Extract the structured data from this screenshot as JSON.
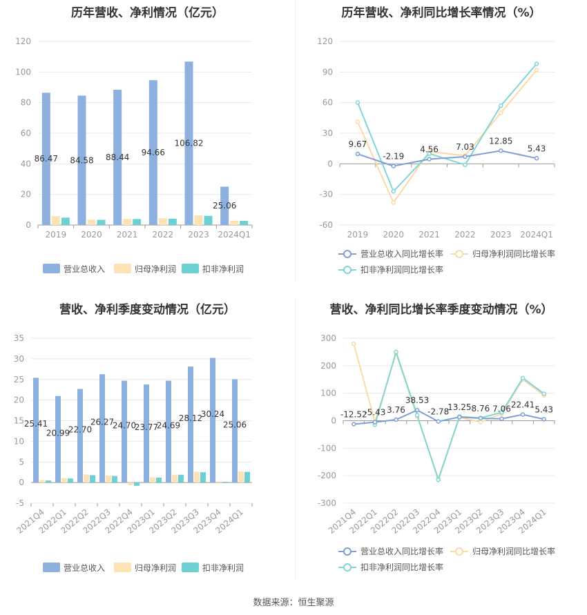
{
  "source_label": "数据来源：恒生聚源",
  "legend_bar": [
    "营业总收入",
    "归母净利润",
    "扣非净利润"
  ],
  "legend_line": [
    "营业总收入同比增长率",
    "归母净利润同比增长率",
    "扣非净利润同比增长率"
  ],
  "colors": {
    "revenue_bar": "#8eb0de",
    "netprofit_bar": "#fde2b5",
    "deducted_bar": "#6dd0d3",
    "revenue_line": "#7e9fd2",
    "netprofit_line": "#fcd9a6",
    "deducted_line": "#7fd6d6"
  },
  "chart_data": [
    {
      "id": "annual_bar",
      "type": "bar",
      "title": "历年营收、净利情况（亿元）",
      "categories": [
        "2019",
        "2020",
        "2021",
        "2022",
        "2023",
        "2024Q1"
      ],
      "series": [
        {
          "name": "营业总收入",
          "values": [
            86.47,
            84.58,
            88.44,
            94.66,
            106.82,
            25.06
          ],
          "labels": [
            "86.47",
            "84.58",
            "88.44",
            "94.66",
            "106.82",
            "25.06"
          ]
        },
        {
          "name": "归母净利润",
          "values": [
            5.8,
            3.5,
            4.0,
            4.4,
            6.3,
            2.8
          ]
        },
        {
          "name": "扣非净利润",
          "values": [
            4.8,
            3.4,
            3.9,
            4.1,
            6.0,
            2.7
          ]
        }
      ],
      "ylim": [
        0,
        120
      ],
      "yticks": [
        0,
        20,
        40,
        60,
        80,
        100,
        120
      ]
    },
    {
      "id": "annual_growth",
      "type": "line",
      "title": "历年营收、净利同比增长率情况（%）",
      "categories": [
        "2019",
        "2020",
        "2021",
        "2022",
        "2023",
        "2024Q1"
      ],
      "series": [
        {
          "name": "营业总收入同比增长率",
          "values": [
            9.67,
            -2.19,
            4.56,
            7.03,
            12.85,
            5.43
          ],
          "labels": [
            "9.67",
            "-2.19",
            "4.56",
            "7.03",
            "12.85",
            "5.43"
          ]
        },
        {
          "name": "归母净利润同比增长率",
          "values": [
            41,
            -38,
            12,
            8,
            50,
            92
          ]
        },
        {
          "name": "扣非净利润同比增长率",
          "values": [
            60,
            -27,
            10,
            -1,
            57,
            98
          ]
        }
      ],
      "ylim": [
        -60,
        120
      ],
      "yticks": [
        -60,
        -30,
        0,
        30,
        60,
        90,
        120
      ]
    },
    {
      "id": "quarterly_bar",
      "type": "bar",
      "title": "营收、净利季度变动情况（亿元）",
      "categories": [
        "2021Q4",
        "2022Q1",
        "2022Q2",
        "2022Q3",
        "2022Q4",
        "2023Q1",
        "2023Q2",
        "2023Q3",
        "2023Q4",
        "2024Q1"
      ],
      "series": [
        {
          "name": "营业总收入",
          "values": [
            25.41,
            20.99,
            22.7,
            26.27,
            24.7,
            23.77,
            24.69,
            28.12,
            30.24,
            25.06
          ],
          "labels": [
            "25.41",
            "20.99",
            "22.70",
            "26.27",
            "24.70",
            "23.77",
            "24.69",
            "28.12",
            "30.24",
            "25.06"
          ]
        },
        {
          "name": "归母净利润",
          "values": [
            0.6,
            1.1,
            2.0,
            1.7,
            -0.6,
            1.3,
            1.9,
            2.6,
            0.3,
            2.7
          ]
        },
        {
          "name": "扣非净利润",
          "values": [
            0.5,
            1.0,
            1.8,
            1.6,
            -0.8,
            1.2,
            1.9,
            2.5,
            0.2,
            2.6
          ]
        }
      ],
      "ylim": [
        -5,
        35
      ],
      "yticks": [
        -5,
        0,
        5,
        10,
        15,
        20,
        25,
        30,
        35
      ]
    },
    {
      "id": "quarterly_growth",
      "type": "line",
      "title": "营收、净利同比增长率季度变动情况（%）",
      "categories": [
        "2021Q4",
        "2022Q1",
        "2022Q2",
        "2022Q3",
        "2022Q4",
        "2023Q1",
        "2023Q2",
        "2023Q3",
        "2023Q4",
        "2024Q1"
      ],
      "series": [
        {
          "name": "营业总收入同比增长率",
          "values": [
            -12.52,
            -5.43,
            3.76,
            38.53,
            -2.78,
            13.25,
            8.76,
            7.06,
            22.41,
            5.43
          ],
          "labels": [
            "-12.52",
            "-5.43",
            "3.76",
            "38.53",
            "-2.78",
            "13.25",
            "8.76",
            "7.06",
            "22.41",
            "5.43"
          ]
        },
        {
          "name": "归母净利润同比增长率",
          "values": [
            280,
            -5,
            245,
            15,
            -210,
            12,
            -5,
            25,
            150,
            92
          ]
        },
        {
          "name": "扣非净利润同比增长率",
          "values": [
            null,
            -15,
            250,
            20,
            -215,
            15,
            10,
            30,
            155,
            98
          ]
        }
      ],
      "ylim": [
        -300,
        300
      ],
      "yticks": [
        -300,
        -200,
        -100,
        0,
        100,
        200,
        300
      ]
    }
  ]
}
